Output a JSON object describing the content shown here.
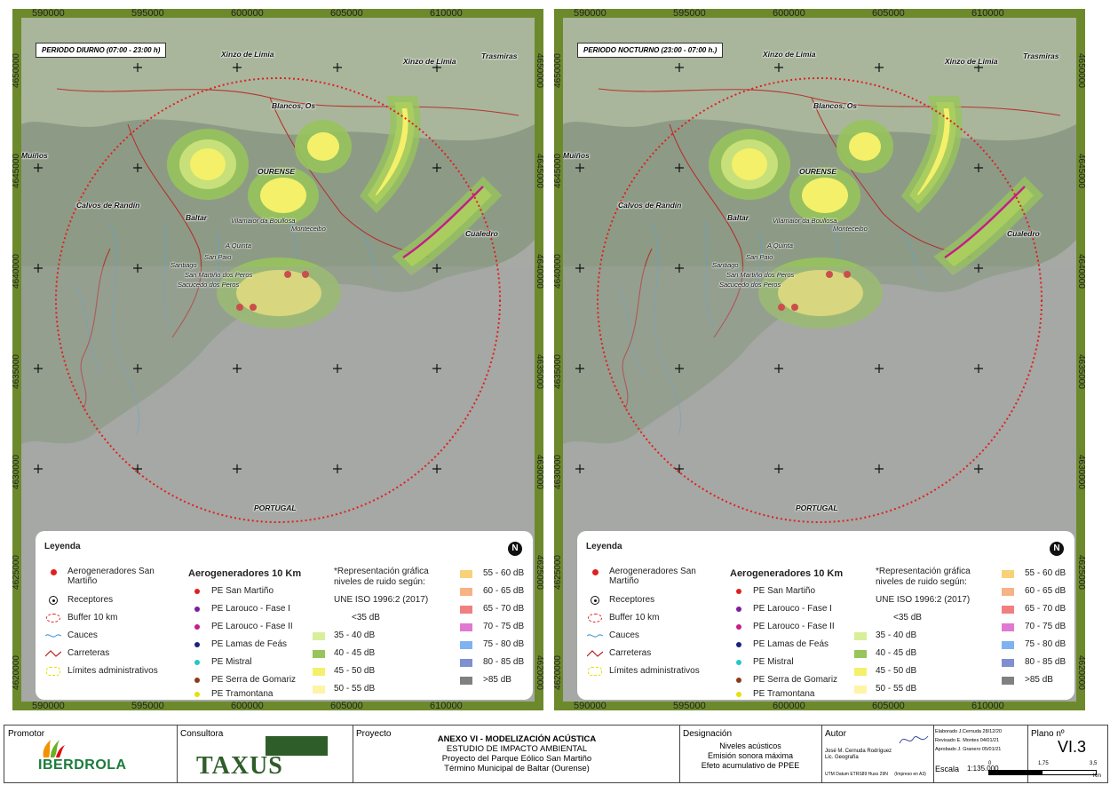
{
  "panels": [
    {
      "period": "PERIODO DIURNO (07:00 - 23:00 h)",
      "places": [
        "Xinzo de Limia",
        "Xinzo de Limia",
        "Trasmiras",
        "Blancos, Os",
        "Muíños",
        "OURENSE",
        "Calvos de Randín",
        "Baltar",
        "Vilamaior da Boullosa",
        "Monteceibo",
        "A Quinta",
        "San Paio",
        "Santiago",
        "San Martiño dos Peros",
        "Sacucedo dos Peros",
        "Cualedro",
        "PORTUGAL"
      ]
    },
    {
      "period": "PERIODO NOCTURNO (23:00 - 07:00 h.)",
      "places": [
        "Xinzo de Limia",
        "Xinzo de Limia",
        "Trasmiras",
        "Blancos, Os",
        "Muíños",
        "OURENSE",
        "Calvos de Randín",
        "Baltar",
        "Vilamaior da Boullosa",
        "Monteceibo",
        "A Quinta",
        "San Paio",
        "Santiago",
        "San Martiño dos Peros",
        "Sacucedo dos Peros",
        "Cualedro",
        "PORTUGAL"
      ]
    }
  ],
  "axis": {
    "x_ticks": [
      "590000",
      "595000",
      "600000",
      "605000",
      "610000"
    ],
    "y_ticks": [
      "4650000",
      "4645000",
      "4640000",
      "4635000",
      "4630000",
      "4625000",
      "4620000"
    ]
  },
  "legend": {
    "title": "Leyenda",
    "items": [
      {
        "label": "Aerogeneradores San Martiño",
        "symbol": "red-dot"
      },
      {
        "label": "Receptores",
        "symbol": "receptor"
      },
      {
        "label": "Buffer 10 km",
        "symbol": "buffer"
      },
      {
        "label": "Cauces",
        "symbol": "cauce"
      },
      {
        "label": "Carreteras",
        "symbol": "road"
      },
      {
        "label": "Límites administrativos",
        "symbol": "limits"
      }
    ],
    "aero_title": "Aerogeneradores 10 Km",
    "aero_items": [
      {
        "label": "PE San Martiño",
        "color": "#e02020"
      },
      {
        "label": "PE Larouco - Fase I",
        "color": "#7a1fa0"
      },
      {
        "label": "PE Larouco - Fase II",
        "color": "#c41e8a"
      },
      {
        "label": "PE Lamas de Feás",
        "color": "#1a237e"
      },
      {
        "label": "PE Mistral",
        "color": "#26c6c6"
      },
      {
        "label": "PE Serra de Gomariz",
        "color": "#8d3a1a"
      },
      {
        "label": "PE Tramontana",
        "color": "#e8e000"
      }
    ],
    "note_line1": "*Representación gráfica",
    "note_line2": "niveles de ruido según:",
    "note_line3": "UNE ISO 1996:2 (2017)",
    "levels_a": [
      {
        "label": "<35 dB",
        "color": ""
      },
      {
        "label": "35 - 40 dB",
        "color": "#d8ef9a"
      },
      {
        "label": "40 - 45 dB",
        "color": "#97c45c"
      },
      {
        "label": "45 - 50 dB",
        "color": "#f4f06a"
      },
      {
        "label": "50 - 55 dB",
        "color": "#fff3a6"
      }
    ],
    "levels_b": [
      {
        "label": "55 - 60 dB",
        "color": "#f7d27a"
      },
      {
        "label": "60 - 65 dB",
        "color": "#f7b285"
      },
      {
        "label": "65 - 70 dB",
        "color": "#f08080"
      },
      {
        "label": "70 - 75 dB",
        "color": "#e07ad0"
      },
      {
        "label": "75 - 80 dB",
        "color": "#7fb2f0"
      },
      {
        "label": "80 - 85 dB",
        "color": "#7f8fd0"
      },
      {
        "label": ">85 dB",
        "color": "#808080"
      }
    ]
  },
  "footer": {
    "promotor_label": "Promotor",
    "promotor_name": "IBERDROLA",
    "consultora_label": "Consultora",
    "consultora_name": "TAXUS",
    "proyecto_label": "Proyecto",
    "proyecto_lines": [
      "ANEXO VI - MODELIZACIÓN ACÚSTICA",
      "ESTUDIO DE IMPACTO AMBIENTAL",
      "Proyecto del Parque Eólico San Martiño",
      "Término Municipal de Baltar (Ourense)"
    ],
    "designacion_label": "Designación",
    "designacion_lines": [
      "Niveles acústicos",
      "Emisión sonora máxima",
      "Efeto acumulativo de PPEE"
    ],
    "autor_label": "Autor",
    "autor_lines": [
      "José M. Cernuda Rodríguez",
      "Lic. Geografía"
    ],
    "datum": "UTM Datum ETRS89 Huso 29N",
    "impreso": "(Impreso en A3)",
    "signoff": [
      {
        "role": "Elaborado",
        "name": "J.Cernuda",
        "date": "28/12/20"
      },
      {
        "role": "Revisado",
        "name": "E. Montes",
        "date": "04/01/21"
      },
      {
        "role": "Aprobado",
        "name": "J. Granero",
        "date": "05/01/21"
      }
    ],
    "escala_label": "Escala",
    "escala_value": "1:135.000",
    "scale_ticks": [
      "0",
      "1,75",
      "3,5"
    ],
    "scale_unit": "Km",
    "plano_label": "Plano nº",
    "plano_value": "VI.3"
  }
}
